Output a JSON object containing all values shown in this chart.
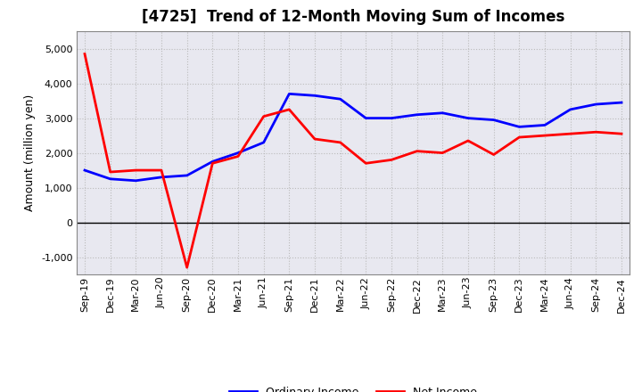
{
  "title": "[4725]  Trend of 12-Month Moving Sum of Incomes",
  "ylabel": "Amount (million yen)",
  "x_labels": [
    "Sep-19",
    "Dec-19",
    "Mar-20",
    "Jun-20",
    "Sep-20",
    "Dec-20",
    "Mar-21",
    "Jun-21",
    "Sep-21",
    "Dec-21",
    "Mar-22",
    "Jun-22",
    "Sep-22",
    "Dec-22",
    "Mar-23",
    "Jun-23",
    "Sep-23",
    "Dec-23",
    "Mar-24",
    "Jun-24",
    "Sep-24",
    "Dec-24"
  ],
  "ordinary_income": [
    1500,
    1250,
    1200,
    1300,
    1350,
    1750,
    2000,
    2300,
    3700,
    3650,
    3550,
    3000,
    3000,
    3100,
    3150,
    3000,
    2950,
    2750,
    2800,
    3250,
    3400,
    3450
  ],
  "net_income": [
    4850,
    1450,
    1500,
    1500,
    -1300,
    1700,
    1900,
    3050,
    3250,
    2400,
    2300,
    1700,
    1800,
    2050,
    2000,
    2350,
    1950,
    2450,
    2500,
    2550,
    2600,
    2550
  ],
  "ordinary_income_color": "#0000FF",
  "net_income_color": "#FF0000",
  "ylim": [
    -1500,
    5500
  ],
  "yticks": [
    -1000,
    0,
    1000,
    2000,
    3000,
    4000,
    5000
  ],
  "plot_bg_color": "#E8E8F0",
  "fig_bg_color": "#FFFFFF",
  "grid_color": "#BBBBBB",
  "title_fontsize": 12,
  "axis_fontsize": 8,
  "ylabel_fontsize": 9,
  "legend_labels": [
    "Ordinary Income",
    "Net Income"
  ],
  "linewidth": 2.0
}
